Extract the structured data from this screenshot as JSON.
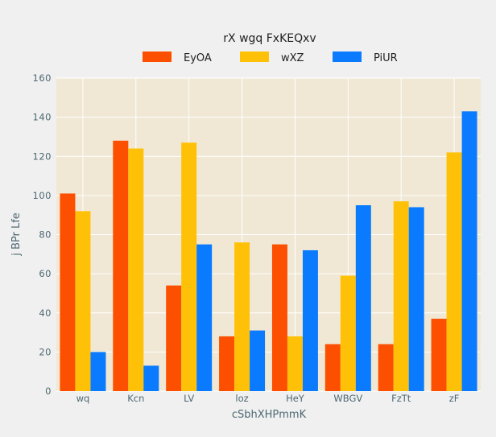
{
  "chart_data": {
    "type": "bar",
    "title": "rX wgq FxKEQxv",
    "xlabel": "cSbhXHPmmK",
    "ylabel": "j BPr Lfe",
    "categories": [
      "wq",
      "Kcn",
      "LV",
      "loz",
      "HeY",
      "WBGV",
      "FzTt",
      "zF"
    ],
    "series": [
      {
        "name": "EyOA",
        "color": "#fc4f00",
        "values": [
          101,
          128,
          54,
          28,
          75,
          24,
          24,
          37
        ]
      },
      {
        "name": "wXZ",
        "color": "#ffc107",
        "values": [
          92,
          124,
          127,
          76,
          28,
          59,
          97,
          122
        ]
      },
      {
        "name": "PiUR",
        "color": "#0a7bff",
        "values": [
          20,
          13,
          75,
          31,
          72,
          95,
          94,
          143
        ]
      }
    ],
    "ylim": [
      0,
      160
    ],
    "yticks": [
      0,
      20,
      40,
      60,
      80,
      100,
      120,
      140,
      160
    ],
    "grid": true,
    "legend_position": "top-center"
  },
  "colors": {
    "background": "#f0f0f0",
    "plot_background": "#f0e8d4",
    "grid": "#ffffff",
    "tick_text": "#4d6872"
  }
}
